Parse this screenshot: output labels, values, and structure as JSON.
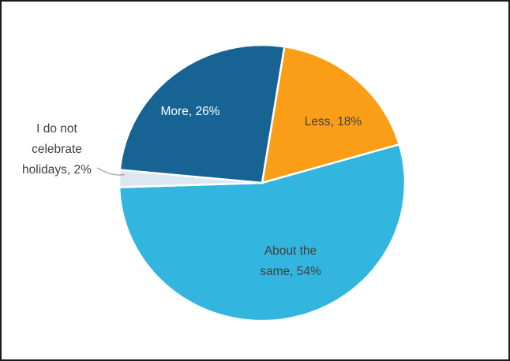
{
  "frame": {
    "background_color": "#ffffff",
    "border_color": "#1b1b1b"
  },
  "chart_data": {
    "type": "pie",
    "title": "",
    "unit": "%",
    "direction": "clockwise",
    "start_angle_deg": 9,
    "legend": "none",
    "slices": [
      {
        "label": "Less",
        "value": 18,
        "display": "Less, 18%",
        "color": "#FB9E17",
        "label_color": "#404040",
        "label_position": "inside"
      },
      {
        "label": "About the same",
        "value": 54,
        "display": "About the same, 54%",
        "color": "#32B5DE",
        "label_color": "#404040",
        "label_position": "inside"
      },
      {
        "label": "I do not celebrate holidays",
        "value": 2,
        "display": "I do not celebrate holidays, 2%",
        "color": "#DCE7F2",
        "label_color": "#404040",
        "label_position": "outside-left"
      },
      {
        "label": "More",
        "value": 26,
        "display": "More, 26%",
        "color": "#166394",
        "label_color": "#ffffff",
        "label_position": "inside"
      }
    ],
    "slice_border_color": "#ffffff",
    "leader_line_color": "#a6a6a6"
  }
}
